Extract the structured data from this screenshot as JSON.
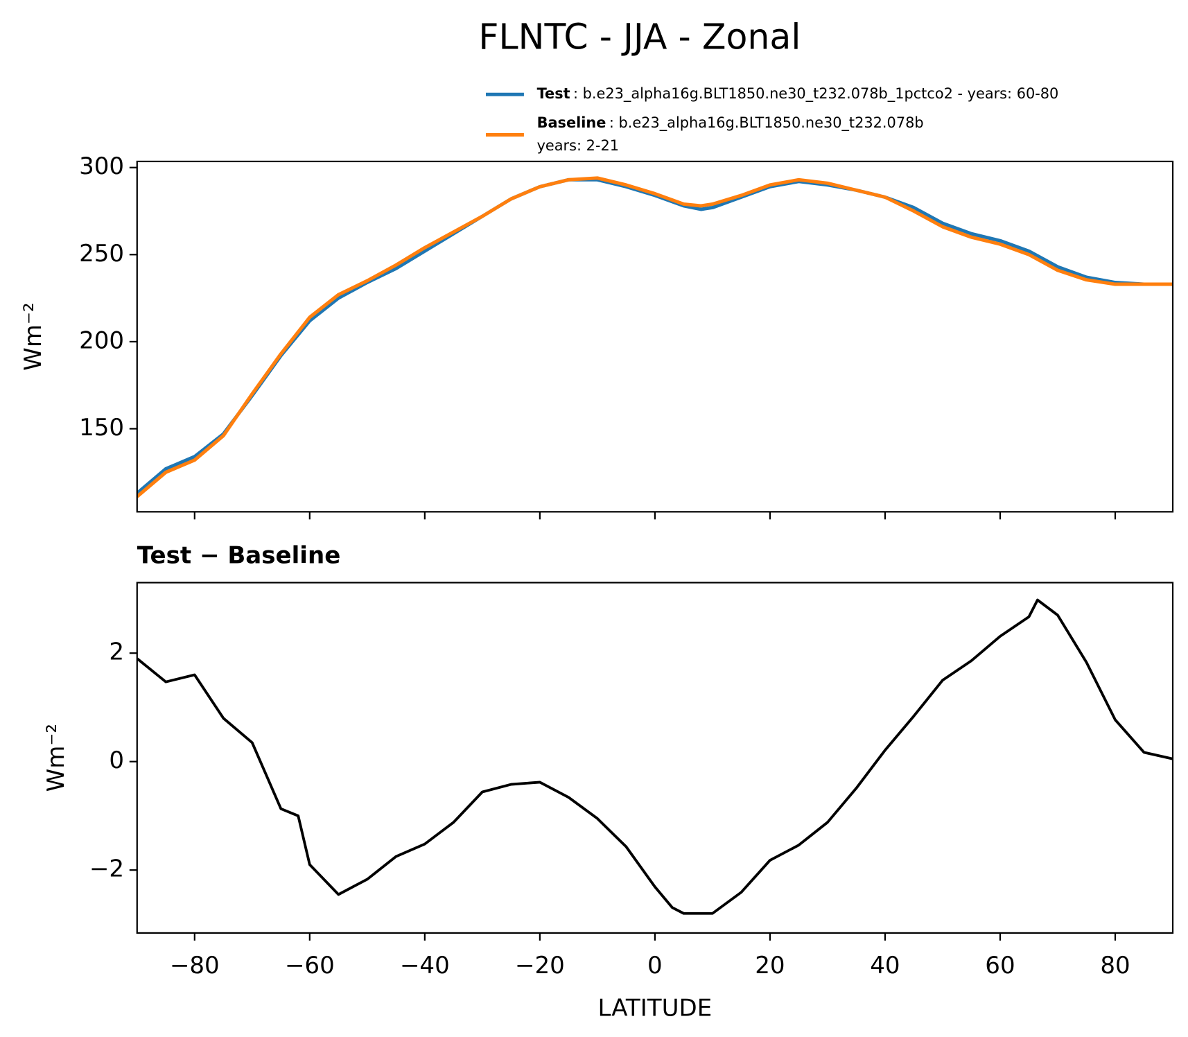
{
  "title": "FLNTC - JJA - Zonal",
  "chart_data": [
    {
      "type": "line",
      "ylabel": "Wm⁻²",
      "x": [
        -90,
        -85,
        -80,
        -75,
        -70,
        -65,
        -60,
        -55,
        -50,
        -45,
        -40,
        -35,
        -30,
        -25,
        -20,
        -15,
        -10,
        -5,
        0,
        5,
        8,
        10,
        15,
        20,
        25,
        30,
        35,
        40,
        45,
        50,
        55,
        60,
        65,
        70,
        75,
        80,
        85,
        90
      ],
      "series": [
        {
          "name": "Test",
          "label": [
            ": b.e23_alpha16g.BLT1850.ne30_t232.078b_1pctco2 - years: 60-80"
          ],
          "color": "#1f77b4",
          "values": [
            113,
            127,
            134,
            147,
            169,
            192,
            212,
            225,
            234,
            242,
            252,
            262,
            272,
            282,
            289,
            293,
            293,
            289,
            284,
            278,
            276,
            277,
            283,
            289,
            292,
            290,
            287,
            283,
            277,
            268,
            262,
            258,
            252,
            243,
            237,
            234,
            233,
            233
          ]
        },
        {
          "name": "Baseline",
          "label": [
            ": b.e23_alpha16g.BLT1850.ne30_t232.078b",
            "years: 2-21"
          ],
          "color": "#ff7f0e",
          "values": [
            111,
            125,
            132,
            146,
            170,
            193,
            214,
            227,
            235,
            244,
            254,
            263,
            272,
            282,
            289,
            293,
            294,
            290,
            285,
            279,
            278,
            279,
            284,
            290,
            293,
            291,
            287,
            283,
            275,
            266,
            260,
            256,
            250,
            241,
            235.5,
            233,
            233,
            233
          ]
        }
      ],
      "xlim": [
        -90,
        90
      ],
      "ylim": [
        102.3,
        303.5
      ],
      "xticks": [
        -80,
        -60,
        -40,
        -20,
        0,
        20,
        40,
        60,
        80
      ],
      "yticks": [
        150,
        200,
        250,
        300
      ]
    },
    {
      "type": "line",
      "title": "Test − Baseline",
      "ylabel": "Wm⁻²",
      "xlabel": "LATITUDE",
      "x": [
        -90,
        -85,
        -80,
        -75,
        -70,
        -65,
        -62,
        -60,
        -55,
        -50,
        -45,
        -40,
        -35,
        -30,
        -25,
        -20,
        -15,
        -10,
        -5,
        0,
        3,
        5,
        10,
        15,
        20,
        25,
        30,
        35,
        40,
        45,
        50,
        55,
        60,
        65,
        66.5,
        70,
        75,
        80,
        85,
        90
      ],
      "series": [
        {
          "color": "#000000",
          "values": [
            1.9,
            1.47,
            1.6,
            0.8,
            0.35,
            -0.87,
            -1.0,
            -1.9,
            -2.45,
            -2.17,
            -1.75,
            -1.52,
            -1.12,
            -0.56,
            -0.42,
            -0.38,
            -0.66,
            -1.05,
            -1.57,
            -2.31,
            -2.69,
            -2.8,
            -2.8,
            -2.41,
            -1.82,
            -1.54,
            -1.12,
            -0.49,
            0.21,
            0.84,
            1.5,
            1.86,
            2.31,
            2.67,
            2.98,
            2.7,
            1.83,
            0.77,
            0.17,
            0.05
          ]
        }
      ],
      "xlim": [
        -90,
        90
      ],
      "ylim": [
        -3.16,
        3.3
      ],
      "xticks": [
        {
          "value": -80,
          "label": "−80"
        },
        {
          "value": -60,
          "label": "−60"
        },
        {
          "value": -40,
          "label": "−40"
        },
        {
          "value": -20,
          "label": "−20"
        },
        0,
        20,
        40,
        60,
        80
      ],
      "yticks": [
        {
          "value": -2,
          "label": "−2"
        },
        0,
        2
      ]
    }
  ]
}
